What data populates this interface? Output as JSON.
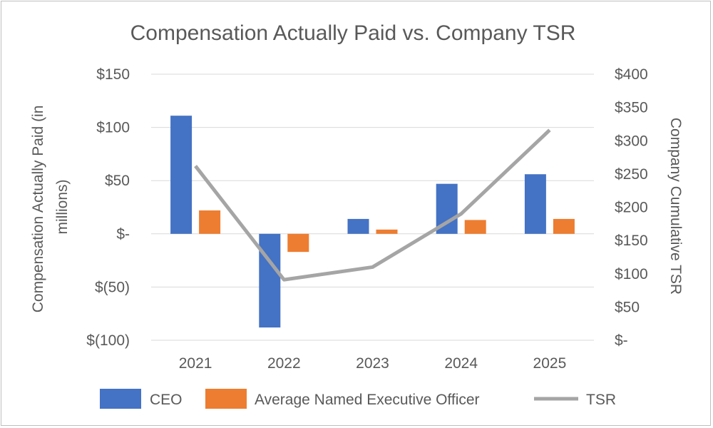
{
  "chart_data": {
    "type": "bar",
    "title": "Compensation Actually Paid vs. Company TSR",
    "categories": [
      "2021",
      "2022",
      "2023",
      "2024",
      "2025"
    ],
    "series": [
      {
        "name": "CEO",
        "type": "bar",
        "axis": "left",
        "color": "#4472C4",
        "values": [
          111,
          -88,
          14,
          47,
          56
        ]
      },
      {
        "name": "Average Named Executive Officer",
        "type": "bar",
        "axis": "left",
        "color": "#ED7D31",
        "values": [
          22,
          -17,
          4,
          13,
          14
        ]
      },
      {
        "name": "TSR",
        "type": "line",
        "axis": "right",
        "color": "#A5A5A5",
        "values": [
          262,
          91,
          110,
          190,
          316
        ]
      }
    ],
    "ylabel": "Compensation Actually Paid (in millions)",
    "ylabel_lines": [
      "Compensation Actually Paid (in",
      "millions)"
    ],
    "y2label": "Company Cumulative TSR",
    "ylim": [
      -100,
      150
    ],
    "y2lim": [
      0,
      400
    ],
    "yticks": [
      {
        "value": 150,
        "label": "$150"
      },
      {
        "value": 100,
        "label": "$100"
      },
      {
        "value": 50,
        "label": "$50"
      },
      {
        "value": 0,
        "label": "$-"
      },
      {
        "value": -50,
        "label": "$(50)"
      },
      {
        "value": -100,
        "label": "$(100)"
      }
    ],
    "y2ticks": [
      {
        "value": 400,
        "label": "$400"
      },
      {
        "value": 350,
        "label": "$350"
      },
      {
        "value": 300,
        "label": "$300"
      },
      {
        "value": 250,
        "label": "$250"
      },
      {
        "value": 200,
        "label": "$200"
      },
      {
        "value": 150,
        "label": "$150"
      },
      {
        "value": 100,
        "label": "$100"
      },
      {
        "value": 50,
        "label": "$50"
      },
      {
        "value": 0,
        "label": "$-"
      }
    ],
    "grid": true,
    "legend_position": "bottom",
    "gridline_color": "#d9d9d9"
  }
}
